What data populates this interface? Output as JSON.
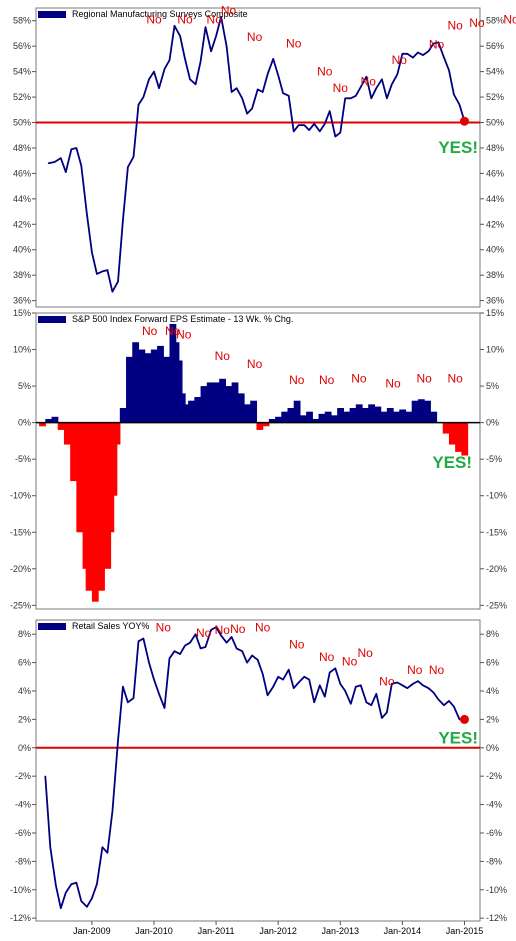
{
  "chart_data": [
    {
      "type": "line",
      "legend": "Regional Manufacturing Surveys Composite",
      "ylim": [
        35.5,
        59
      ],
      "yticks": [
        36,
        38,
        40,
        42,
        44,
        46,
        48,
        50,
        52,
        54,
        56,
        58
      ],
      "ytick_labels": [
        "36%",
        "38%",
        "40%",
        "42%",
        "44%",
        "46%",
        "48%",
        "50%",
        "52%",
        "54%",
        "56%",
        "58%"
      ],
      "reference_line": 50,
      "colors": {
        "series": "#000080",
        "reference": "#e00000",
        "no": "#e00000",
        "yes": "#22aa44"
      },
      "series": [
        {
          "x": [
            2008.3,
            2008.4,
            2008.5,
            2008.58,
            2008.67,
            2008.75,
            2008.83,
            2008.92,
            2009.0,
            2009.08,
            2009.17,
            2009.25,
            2009.33,
            2009.42,
            2009.5,
            2009.58,
            2009.67,
            2009.75,
            2009.83,
            2009.92,
            2010.0,
            2010.08,
            2010.17,
            2010.25,
            2010.33,
            2010.42,
            2010.5,
            2010.58,
            2010.67,
            2010.75,
            2010.83,
            2010.92,
            2011.0,
            2011.08,
            2011.17,
            2011.25,
            2011.33,
            2011.42,
            2011.5,
            2011.58,
            2011.67,
            2011.75,
            2011.83,
            2011.92,
            2012.0,
            2012.08,
            2012.17,
            2012.25,
            2012.33,
            2012.42,
            2012.5,
            2012.58,
            2012.67,
            2012.75,
            2012.83,
            2012.92,
            2013.0,
            2013.08,
            2013.17,
            2013.25,
            2013.33,
            2013.42,
            2013.5,
            2013.58,
            2013.67,
            2013.75,
            2013.83,
            2013.92,
            2014.0,
            2014.08,
            2014.17,
            2014.25,
            2014.33,
            2014.42,
            2014.5,
            2014.58,
            2014.67,
            2014.75,
            2014.83,
            2014.92,
            2015.0
          ],
          "y": [
            46.8,
            46.9,
            47.2,
            46.1,
            47.9,
            48.0,
            46.6,
            42.8,
            39.8,
            38.1,
            38.3,
            38.4,
            36.7,
            37.5,
            42.3,
            46.5,
            47.3,
            51.4,
            52.0,
            53.4,
            54.0,
            52.7,
            54.2,
            54.9,
            57.6,
            56.8,
            55.0,
            53.4,
            53.0,
            54.8,
            57.5,
            55.6,
            56.8,
            58.3,
            56.0,
            52.4,
            52.7,
            51.9,
            50.7,
            51.1,
            52.6,
            52.4,
            53.8,
            55.0,
            53.7,
            52.3,
            52.1,
            49.3,
            49.8,
            49.8,
            49.4,
            49.9,
            49.3,
            49.9,
            50.9,
            48.9,
            49.2,
            51.9,
            51.9,
            52.1,
            52.8,
            53.6,
            51.9,
            52.7,
            53.4,
            51.9,
            53.0,
            53.8,
            55.4,
            55.4,
            55.1,
            55.5,
            55.3,
            55.6,
            56.2,
            56.3,
            55.1,
            54.1,
            52.2,
            51.4,
            50.1
          ]
        }
      ],
      "annotations": [
        {
          "text": "No",
          "x": 2010.0,
          "y": 57.8
        },
        {
          "text": "No",
          "x": 2010.5,
          "y": 57.8
        },
        {
          "text": "No",
          "x": 2010.97,
          "y": 57.8
        },
        {
          "text": "No",
          "x": 2011.2,
          "y": 58.5
        },
        {
          "text": "No",
          "x": 2011.62,
          "y": 56.4
        },
        {
          "text": "No",
          "x": 2012.25,
          "y": 55.9
        },
        {
          "text": "No",
          "x": 2012.75,
          "y": 53.7
        },
        {
          "text": "No",
          "x": 2013.0,
          "y": 52.4
        },
        {
          "text": "No",
          "x": 2013.45,
          "y": 52.9
        },
        {
          "text": "No",
          "x": 2013.95,
          "y": 54.6
        },
        {
          "text": "No",
          "x": 2014.55,
          "y": 55.8
        },
        {
          "text": "No",
          "x": 2014.85,
          "y": 57.3
        },
        {
          "text": "No",
          "x": 2015.2,
          "y": 57.5
        },
        {
          "text": "No",
          "x": 2015.75,
          "y": 57.8
        }
      ],
      "highlight": {
        "text": "YES!",
        "point_x": 2015.0,
        "point_y": 50.1
      }
    },
    {
      "type": "area",
      "legend": "S&P 500 Index Forward EPS Estimate - 13 Wk. % Chg.",
      "ylim": [
        -25.5,
        15
      ],
      "yticks": [
        -25,
        -20,
        -15,
        -10,
        -5,
        0,
        5,
        10,
        15
      ],
      "ytick_labels": [
        "-25%",
        "-20%",
        "-15%",
        "-10%",
        "-5%",
        "0%",
        "5%",
        "10%",
        "15%"
      ],
      "colors": {
        "positive": "#000080",
        "negative": "#ff0000",
        "zero_line": "#000000",
        "no": "#e00000",
        "yes": "#22aa44"
      },
      "series": [
        {
          "x": [
            2008.2,
            2008.3,
            2008.4,
            2008.5,
            2008.6,
            2008.7,
            2008.8,
            2008.9,
            2008.95,
            2009.0,
            2009.05,
            2009.1,
            2009.15,
            2009.2,
            2009.25,
            2009.3,
            2009.35,
            2009.4,
            2009.5,
            2009.6,
            2009.7,
            2009.75,
            2009.8,
            2009.9,
            2010.0,
            2010.1,
            2010.2,
            2010.3,
            2010.35,
            2010.4,
            2010.45,
            2010.5,
            2010.6,
            2010.7,
            2010.8,
            2010.9,
            2011.0,
            2011.1,
            2011.2,
            2011.3,
            2011.4,
            2011.5,
            2011.6,
            2011.7,
            2011.8,
            2011.9,
            2012.0,
            2012.1,
            2012.2,
            2012.3,
            2012.4,
            2012.5,
            2012.6,
            2012.7,
            2012.8,
            2012.9,
            2013.0,
            2013.1,
            2013.2,
            2013.3,
            2013.4,
            2013.5,
            2013.6,
            2013.7,
            2013.8,
            2013.9,
            2014.0,
            2014.1,
            2014.2,
            2014.3,
            2014.4,
            2014.5,
            2014.6,
            2014.7,
            2014.8,
            2014.9,
            2015.0
          ],
          "y": [
            -0.5,
            0.5,
            0.8,
            -1.0,
            -3.0,
            -8.0,
            -15.0,
            -20.0,
            -23.0,
            -22.0,
            -24.5,
            -21.0,
            -23.0,
            -18.0,
            -20.0,
            -15.0,
            -10.0,
            -3.0,
            2.0,
            9.0,
            11.0,
            8.0,
            10.0,
            9.5,
            10.0,
            10.5,
            9.0,
            13.5,
            11.0,
            8.5,
            4.0,
            2.5,
            3.0,
            3.5,
            5.0,
            5.5,
            5.5,
            6.0,
            5.0,
            5.5,
            4.0,
            2.5,
            3.0,
            -1.0,
            -0.5,
            0.5,
            0.8,
            1.5,
            2.0,
            3.0,
            1.0,
            1.5,
            0.5,
            1.2,
            1.5,
            1.0,
            2.0,
            1.5,
            2.0,
            2.5,
            2.0,
            2.5,
            2.2,
            1.5,
            2.0,
            1.5,
            1.8,
            1.5,
            3.0,
            3.2,
            3.0,
            1.5,
            0.0,
            -1.5,
            -3.0,
            -4.0,
            -4.5
          ]
        }
      ],
      "annotations": [
        {
          "text": "No",
          "x": 2009.93,
          "y": 12.0
        },
        {
          "text": "No",
          "x": 2010.3,
          "y": 12.0
        },
        {
          "text": "No",
          "x": 2010.48,
          "y": 11.5
        },
        {
          "text": "No",
          "x": 2011.1,
          "y": 8.6
        },
        {
          "text": "No",
          "x": 2011.62,
          "y": 7.5
        },
        {
          "text": "No",
          "x": 2012.3,
          "y": 5.3
        },
        {
          "text": "No",
          "x": 2012.78,
          "y": 5.3
        },
        {
          "text": "No",
          "x": 2013.3,
          "y": 5.5
        },
        {
          "text": "No",
          "x": 2013.85,
          "y": 4.8
        },
        {
          "text": "No",
          "x": 2014.35,
          "y": 5.5
        },
        {
          "text": "No",
          "x": 2014.85,
          "y": 5.5
        }
      ],
      "highlight": {
        "text": "YES!"
      }
    },
    {
      "type": "line",
      "legend": "Retail Sales YOY%",
      "xlabels": [
        "Jan-2009",
        "Jan-2010",
        "Jan-2011",
        "Jan-2012",
        "Jan-2013",
        "Jan-2014",
        "Jan-2015"
      ],
      "xlabel_positions": [
        2009,
        2010,
        2011,
        2012,
        2013,
        2014,
        2015
      ],
      "ylim": [
        -12.2,
        9
      ],
      "yticks": [
        -12,
        -10,
        -8,
        -6,
        -4,
        -2,
        0,
        2,
        4,
        6,
        8
      ],
      "ytick_labels": [
        "-12%",
        "-10%",
        "-8%",
        "-6%",
        "-4%",
        "-2%",
        "0%",
        "2%",
        "4%",
        "6%",
        "8%"
      ],
      "reference_line": 0,
      "colors": {
        "series": "#000080",
        "reference": "#e00000",
        "no": "#e00000",
        "yes": "#22aa44"
      },
      "series": [
        {
          "x": [
            2008.25,
            2008.33,
            2008.42,
            2008.5,
            2008.58,
            2008.67,
            2008.75,
            2008.83,
            2008.92,
            2009.0,
            2009.08,
            2009.17,
            2009.25,
            2009.33,
            2009.42,
            2009.5,
            2009.58,
            2009.67,
            2009.75,
            2009.83,
            2009.92,
            2010.0,
            2010.08,
            2010.17,
            2010.25,
            2010.33,
            2010.42,
            2010.5,
            2010.58,
            2010.67,
            2010.75,
            2010.83,
            2010.92,
            2011.0,
            2011.08,
            2011.17,
            2011.25,
            2011.33,
            2011.42,
            2011.5,
            2011.58,
            2011.67,
            2011.75,
            2011.83,
            2011.92,
            2012.0,
            2012.08,
            2012.17,
            2012.25,
            2012.33,
            2012.42,
            2012.5,
            2012.58,
            2012.67,
            2012.75,
            2012.83,
            2012.92,
            2013.0,
            2013.08,
            2013.17,
            2013.25,
            2013.33,
            2013.42,
            2013.5,
            2013.58,
            2013.67,
            2013.75,
            2013.83,
            2013.92,
            2014.0,
            2014.08,
            2014.17,
            2014.25,
            2014.33,
            2014.42,
            2014.5,
            2014.58,
            2014.67,
            2014.75,
            2014.83,
            2014.92,
            2015.0
          ],
          "y": [
            -2.0,
            -7.0,
            -9.7,
            -11.3,
            -10.2,
            -9.6,
            -9.5,
            -10.8,
            -11.2,
            -10.6,
            -9.6,
            -7.0,
            -7.4,
            -4.5,
            0.5,
            4.3,
            3.2,
            3.5,
            7.5,
            7.7,
            6.0,
            4.8,
            3.8,
            2.8,
            6.3,
            6.8,
            6.6,
            7.2,
            7.4,
            8.0,
            7.0,
            7.1,
            8.3,
            8.5,
            7.9,
            7.4,
            7.8,
            7.0,
            6.8,
            6.0,
            6.5,
            6.2,
            5.2,
            3.7,
            4.3,
            5.0,
            4.8,
            5.5,
            4.2,
            4.6,
            5.0,
            4.8,
            3.2,
            4.4,
            3.6,
            5.3,
            5.6,
            4.5,
            4.0,
            3.1,
            4.3,
            4.4,
            3.2,
            3.0,
            3.8,
            2.1,
            2.5,
            4.5,
            4.6,
            4.4,
            4.2,
            4.5,
            4.7,
            4.4,
            4.2,
            3.9,
            3.4,
            3.0,
            3.3,
            2.9,
            2.0,
            2.0
          ]
        }
      ],
      "annotations": [
        {
          "text": "No",
          "x": 2010.15,
          "y": 8.2
        },
        {
          "text": "No",
          "x": 2010.8,
          "y": 7.8
        },
        {
          "text": "No",
          "x": 2011.1,
          "y": 8.0
        },
        {
          "text": "No",
          "x": 2011.35,
          "y": 8.1
        },
        {
          "text": "No",
          "x": 2011.75,
          "y": 8.2
        },
        {
          "text": "No",
          "x": 2012.3,
          "y": 7.0
        },
        {
          "text": "No",
          "x": 2012.78,
          "y": 6.1
        },
        {
          "text": "No",
          "x": 2013.15,
          "y": 5.8
        },
        {
          "text": "No",
          "x": 2013.4,
          "y": 6.4
        },
        {
          "text": "No",
          "x": 2013.75,
          "y": 4.4
        },
        {
          "text": "No",
          "x": 2014.2,
          "y": 5.2
        },
        {
          "text": "No",
          "x": 2014.55,
          "y": 5.2
        }
      ],
      "highlight": {
        "text": "YES!",
        "point_x": 2015.0,
        "point_y": 2.0
      }
    }
  ]
}
